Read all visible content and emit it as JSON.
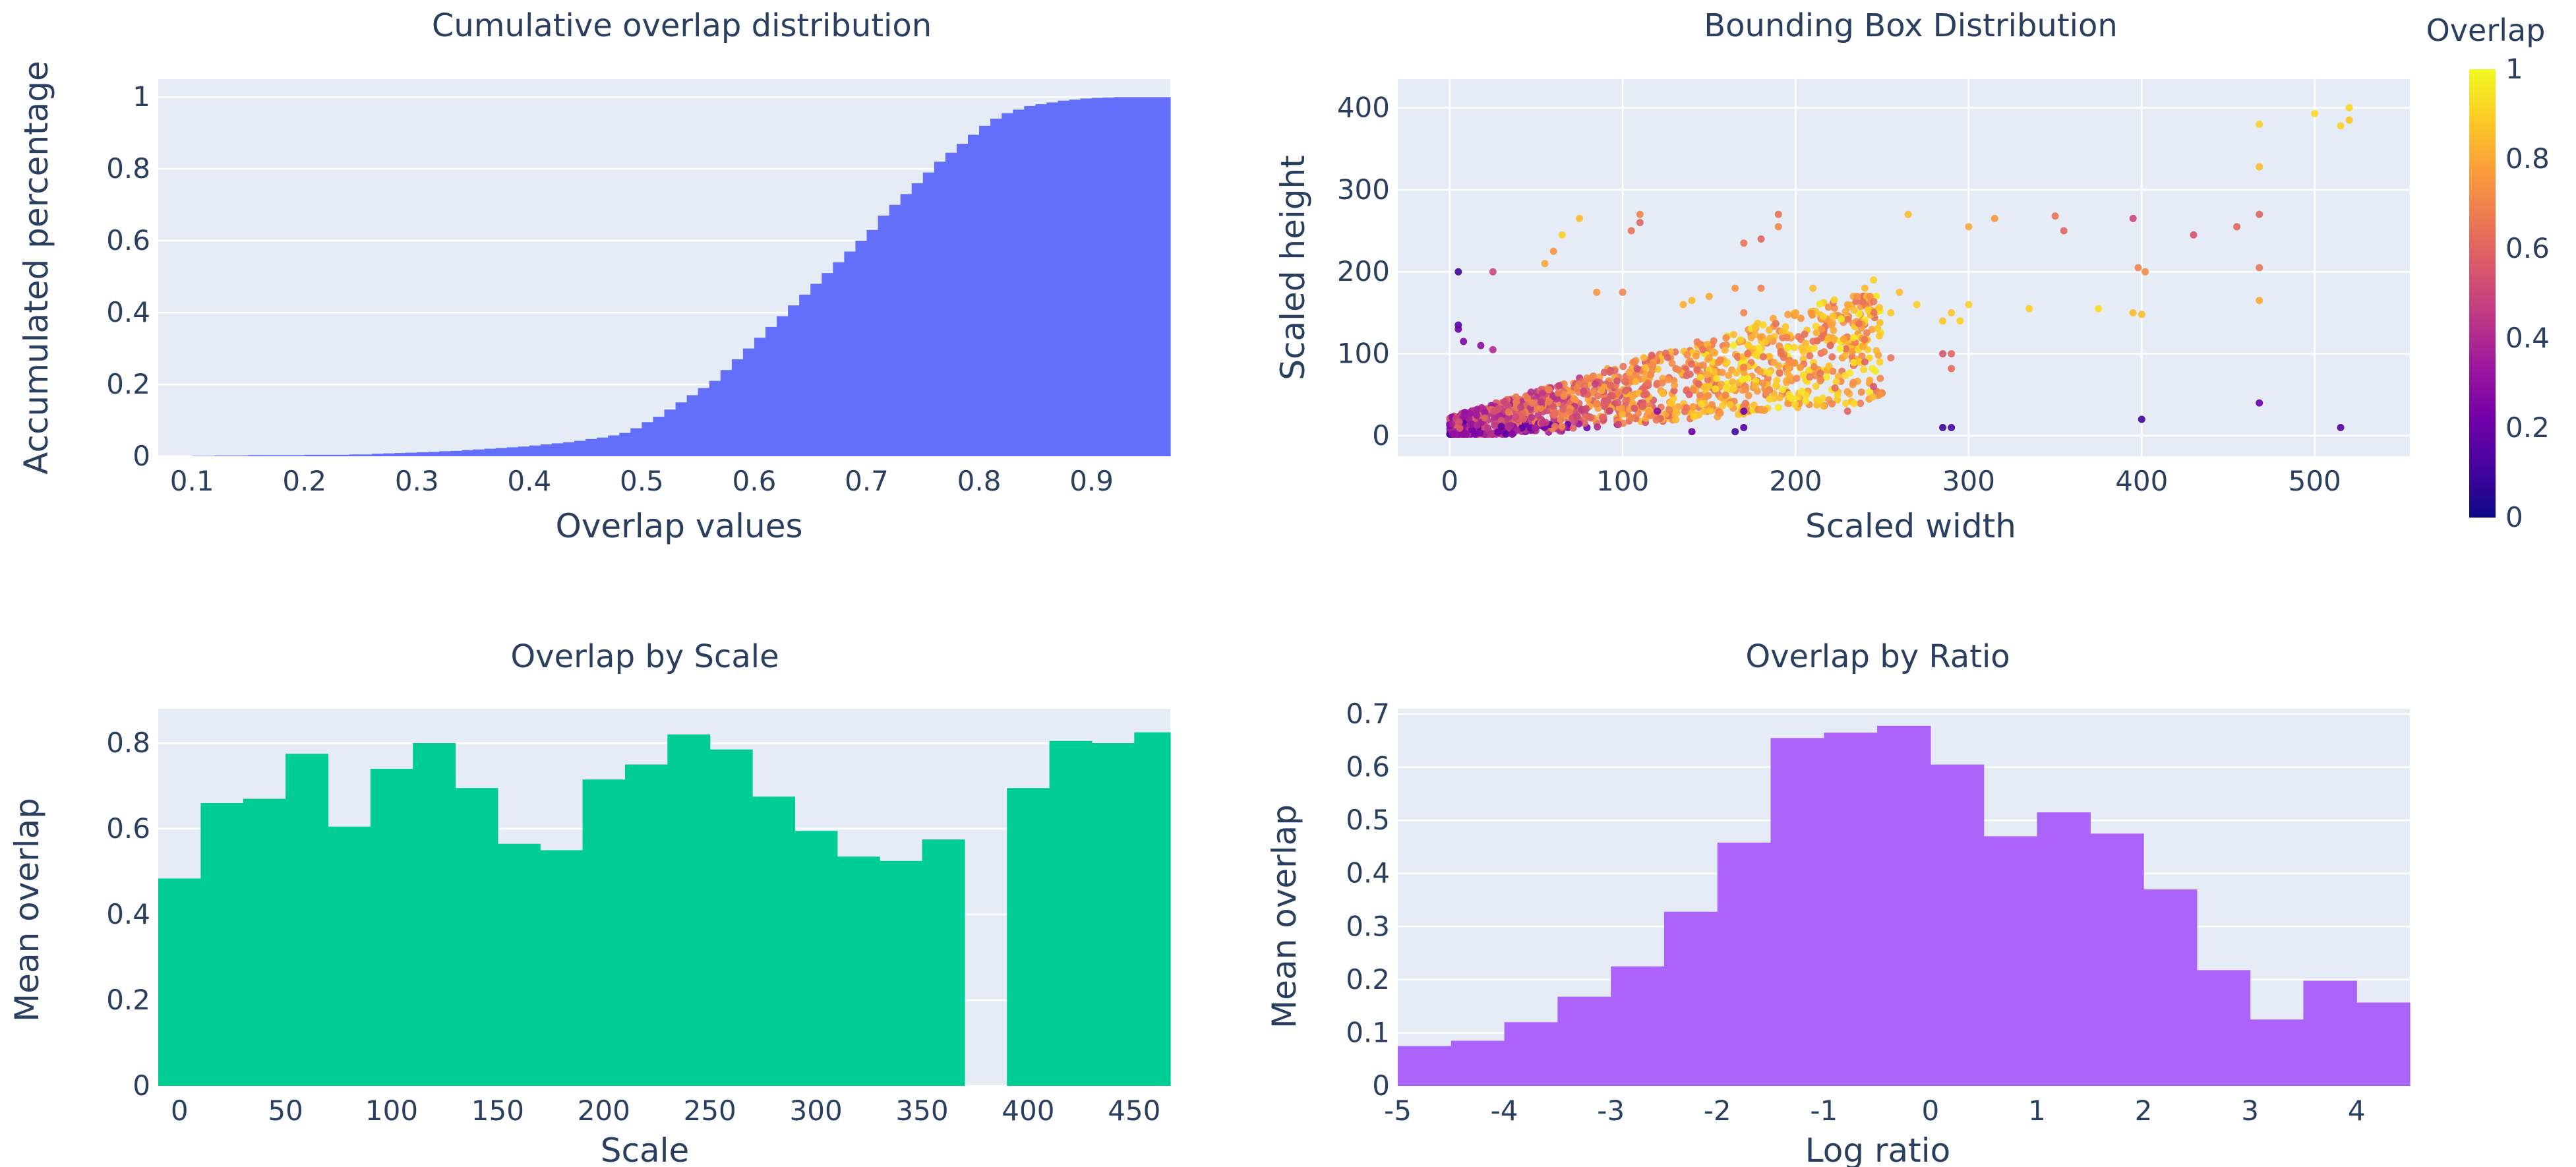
{
  "colorbar": {
    "title": "Overlap",
    "ticks": [
      0,
      0.2,
      0.4,
      0.6,
      0.8,
      1
    ],
    "tick_labels": [
      "0",
      "0.2",
      "0.4",
      "0.6",
      "0.8",
      "1"
    ],
    "colors": [
      "#0d0887",
      "#46039f",
      "#7201a8",
      "#9c179e",
      "#bd3786",
      "#d8576b",
      "#ed7953",
      "#fb9f3a",
      "#fdca26",
      "#f0f921"
    ]
  },
  "chart_data": [
    {
      "id": "cumulative",
      "type": "bar",
      "title": "Cumulative overlap distribution",
      "xlabel": "Overlap values",
      "ylabel": "Accumulated percentage",
      "color": "#636efa",
      "xlim": [
        0.07,
        0.97
      ],
      "ylim": [
        0,
        1.05
      ],
      "x_ticks": [
        0.1,
        0.2,
        0.3,
        0.4,
        0.5,
        0.6,
        0.7,
        0.8,
        0.9
      ],
      "x_tick_labels": [
        "0.1",
        "0.2",
        "0.3",
        "0.4",
        "0.5",
        "0.6",
        "0.7",
        "0.8",
        "0.9"
      ],
      "y_ticks": [
        0,
        0.2,
        0.4,
        0.6,
        0.8,
        1
      ],
      "y_tick_labels": [
        "0",
        "0.2",
        "0.4",
        "0.6",
        "0.8",
        "1"
      ],
      "bin_start": 0.1,
      "bin_width": 0.01,
      "values": [
        0.001,
        0.001,
        0.002,
        0.002,
        0.002,
        0.003,
        0.003,
        0.003,
        0.003,
        0.003,
        0.004,
        0.004,
        0.004,
        0.004,
        0.005,
        0.005,
        0.007,
        0.008,
        0.009,
        0.01,
        0.011,
        0.012,
        0.014,
        0.015,
        0.017,
        0.019,
        0.021,
        0.023,
        0.025,
        0.027,
        0.03,
        0.033,
        0.036,
        0.039,
        0.043,
        0.048,
        0.052,
        0.058,
        0.065,
        0.078,
        0.095,
        0.11,
        0.13,
        0.15,
        0.17,
        0.19,
        0.21,
        0.24,
        0.27,
        0.3,
        0.33,
        0.36,
        0.39,
        0.42,
        0.45,
        0.48,
        0.51,
        0.54,
        0.57,
        0.6,
        0.63,
        0.67,
        0.7,
        0.73,
        0.76,
        0.79,
        0.82,
        0.845,
        0.87,
        0.895,
        0.92,
        0.94,
        0.955,
        0.965,
        0.975,
        0.98,
        0.985,
        0.99,
        0.993,
        0.996,
        0.998,
        0.999,
        1.0,
        1.0,
        1.0,
        1.0,
        1.0
      ]
    },
    {
      "id": "bbox",
      "type": "scatter",
      "title": "Bounding Box Distribution",
      "xlabel": "Scaled width",
      "ylabel": "Scaled height",
      "xlim": [
        -30,
        555
      ],
      "ylim": [
        -25,
        435
      ],
      "x_ticks": [
        0,
        100,
        200,
        300,
        400,
        500
      ],
      "x_tick_labels": [
        "0",
        "100",
        "200",
        "300",
        "400",
        "500"
      ],
      "y_ticks": [
        0,
        100,
        200,
        300,
        400
      ],
      "y_tick_labels": [
        "0",
        "100",
        "200",
        "300",
        "400"
      ],
      "points": [
        [
          520,
          400,
          0.92
        ],
        [
          500,
          393,
          0.93
        ],
        [
          515,
          378,
          0.9
        ],
        [
          520,
          385,
          0.88
        ],
        [
          468,
          380,
          0.9
        ],
        [
          468,
          328,
          0.85
        ],
        [
          468,
          270,
          0.6
        ],
        [
          468,
          205,
          0.65
        ],
        [
          468,
          165,
          0.8
        ],
        [
          468,
          40,
          0.2
        ],
        [
          515,
          10,
          0.15
        ],
        [
          455,
          255,
          0.6
        ],
        [
          430,
          245,
          0.55
        ],
        [
          395,
          265,
          0.5
        ],
        [
          398,
          205,
          0.7
        ],
        [
          402,
          200,
          0.72
        ],
        [
          395,
          150,
          0.85
        ],
        [
          400,
          148,
          0.85
        ],
        [
          400,
          20,
          0.1
        ],
        [
          375,
          155,
          0.93
        ],
        [
          350,
          268,
          0.65
        ],
        [
          355,
          250,
          0.6
        ],
        [
          335,
          155,
          0.9
        ],
        [
          315,
          265,
          0.75
        ],
        [
          300,
          255,
          0.8
        ],
        [
          300,
          160,
          0.9
        ],
        [
          290,
          150,
          0.88
        ],
        [
          285,
          140,
          0.88
        ],
        [
          295,
          140,
          0.9
        ],
        [
          290,
          100,
          0.6
        ],
        [
          290,
          82,
          0.62
        ],
        [
          285,
          100,
          0.55
        ],
        [
          285,
          10,
          0.1
        ],
        [
          290,
          10,
          0.12
        ],
        [
          270,
          160,
          0.9
        ],
        [
          265,
          270,
          0.85
        ],
        [
          260,
          175,
          0.85
        ],
        [
          255,
          150,
          0.88
        ],
        [
          245,
          190,
          0.9
        ],
        [
          240,
          180,
          0.85
        ],
        [
          230,
          160,
          0.8
        ],
        [
          220,
          110,
          0.6
        ],
        [
          215,
          130,
          0.75
        ],
        [
          210,
          180,
          0.85
        ],
        [
          200,
          150,
          0.8
        ],
        [
          195,
          120,
          0.7
        ],
        [
          190,
          270,
          0.65
        ],
        [
          190,
          255,
          0.7
        ],
        [
          180,
          240,
          0.6
        ],
        [
          170,
          235,
          0.65
        ],
        [
          170,
          150,
          0.7
        ],
        [
          165,
          180,
          0.75
        ],
        [
          180,
          180,
          0.7
        ],
        [
          150,
          170,
          0.8
        ],
        [
          140,
          165,
          0.85
        ],
        [
          135,
          160,
          0.82
        ],
        [
          170,
          30,
          0.2
        ],
        [
          170,
          10,
          0.15
        ],
        [
          165,
          5,
          0.1
        ],
        [
          140,
          5,
          0.2
        ],
        [
          120,
          30,
          0.3
        ],
        [
          110,
          270,
          0.7
        ],
        [
          110,
          260,
          0.6
        ],
        [
          105,
          250,
          0.65
        ],
        [
          100,
          175,
          0.7
        ],
        [
          85,
          175,
          0.75
        ],
        [
          75,
          265,
          0.85
        ],
        [
          65,
          245,
          0.9
        ],
        [
          60,
          225,
          0.75
        ],
        [
          55,
          210,
          0.8
        ],
        [
          25,
          200,
          0.5
        ],
        [
          5,
          200,
          0.1
        ],
        [
          5,
          135,
          0.15
        ],
        [
          5,
          130,
          0.2
        ],
        [
          8,
          115,
          0.25
        ],
        [
          18,
          110,
          0.3
        ],
        [
          25,
          105,
          0.4
        ],
        [
          230,
          30,
          0.6
        ],
        [
          245,
          60,
          0.55
        ],
        [
          240,
          90,
          0.6
        ],
        [
          255,
          95,
          0.65
        ]
      ],
      "cluster_note": "dense cluster along width 0-250, height 0-170 with colors mostly in 0.5-0.9 range"
    },
    {
      "id": "scale",
      "type": "bar",
      "title": "Overlap by Scale",
      "xlabel": "Scale",
      "ylabel": "Mean overlap",
      "color": "#00cc96",
      "xlim": [
        -10,
        467
      ],
      "ylim": [
        0,
        0.88
      ],
      "x_ticks": [
        0,
        50,
        100,
        150,
        200,
        250,
        300,
        350,
        400,
        450
      ],
      "x_tick_labels": [
        "0",
        "50",
        "100",
        "150",
        "200",
        "250",
        "300",
        "350",
        "400",
        "450"
      ],
      "y_ticks": [
        0,
        0.2,
        0.4,
        0.6,
        0.8
      ],
      "y_tick_labels": [
        "0",
        "0.2",
        "0.4",
        "0.6",
        "0.8"
      ],
      "bin_start": -10,
      "bin_width": 20,
      "values": [
        0.484,
        0.66,
        0.67,
        0.775,
        0.605,
        0.74,
        0.8,
        0.695,
        0.565,
        0.55,
        0.715,
        0.75,
        0.82,
        0.785,
        0.675,
        0.595,
        0.535,
        0.525,
        0.575,
        null,
        0.695,
        0.805,
        0.8,
        0.825
      ]
    },
    {
      "id": "ratio",
      "type": "bar",
      "title": "Overlap by Ratio",
      "xlabel": "Log ratio",
      "ylabel": "Mean overlap",
      "color": "#ab63fa",
      "xlim": [
        -5,
        4.5
      ],
      "ylim": [
        0,
        0.71
      ],
      "x_ticks": [
        -5,
        -4,
        -3,
        -2,
        -1,
        0,
        1,
        2,
        3,
        4
      ],
      "x_tick_labels": [
        "-5",
        "-4",
        "-3",
        "-2",
        "-1",
        "0",
        "1",
        "2",
        "3",
        "4"
      ],
      "y_ticks": [
        0,
        0.1,
        0.2,
        0.3,
        0.4,
        0.5,
        0.6,
        0.7
      ],
      "y_tick_labels": [
        "0",
        "0.1",
        "0.2",
        "0.3",
        "0.4",
        "0.5",
        "0.6",
        "0.7"
      ],
      "bin_start": -5,
      "bin_width": 0.5,
      "values": [
        0.075,
        0.085,
        0.12,
        0.168,
        0.225,
        0.328,
        0.458,
        0.655,
        0.665,
        0.678,
        0.605,
        0.47,
        0.515,
        0.475,
        0.37,
        0.218,
        0.125,
        0.198,
        0.157
      ]
    }
  ]
}
